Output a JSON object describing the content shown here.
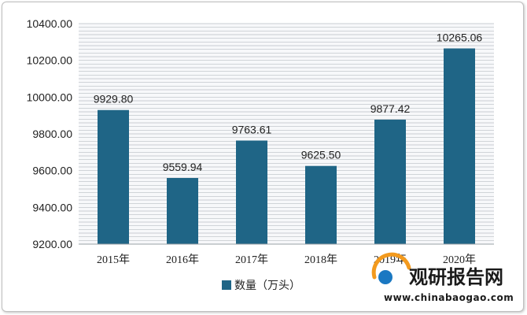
{
  "chart_data": {
    "type": "bar",
    "categories": [
      "2015年",
      "2016年",
      "2017年",
      "2018年",
      "2019年",
      "2020年"
    ],
    "series": [
      {
        "name": "数量（万头）",
        "values": [
          9929.8,
          9559.94,
          9763.61,
          9625.5,
          9877.42,
          10265.06
        ],
        "labels": [
          "9929.80",
          "9559.94",
          "9763.61",
          "9625.50",
          "9877.42",
          "10265.06"
        ]
      }
    ],
    "ylim": [
      9200,
      10400
    ],
    "yticks": [
      9200,
      9400,
      9600,
      9800,
      10000,
      10200,
      10400
    ],
    "ytick_labels": [
      "9200.00",
      "9400.00",
      "9600.00",
      "9800.00",
      "10000.00",
      "10200.00",
      "10400.00"
    ],
    "grid": true,
    "legend_position": "bottom",
    "colors": {
      "bar": "#1f6586",
      "grid": "#b9bfc4",
      "plot_bg": "#f7f8fa"
    }
  },
  "watermark": {
    "brand": "观研报告网",
    "url": "www.chinabaogao.com",
    "colors": {
      "orange": "#f39a1e",
      "blue": "#1a78c2"
    }
  }
}
